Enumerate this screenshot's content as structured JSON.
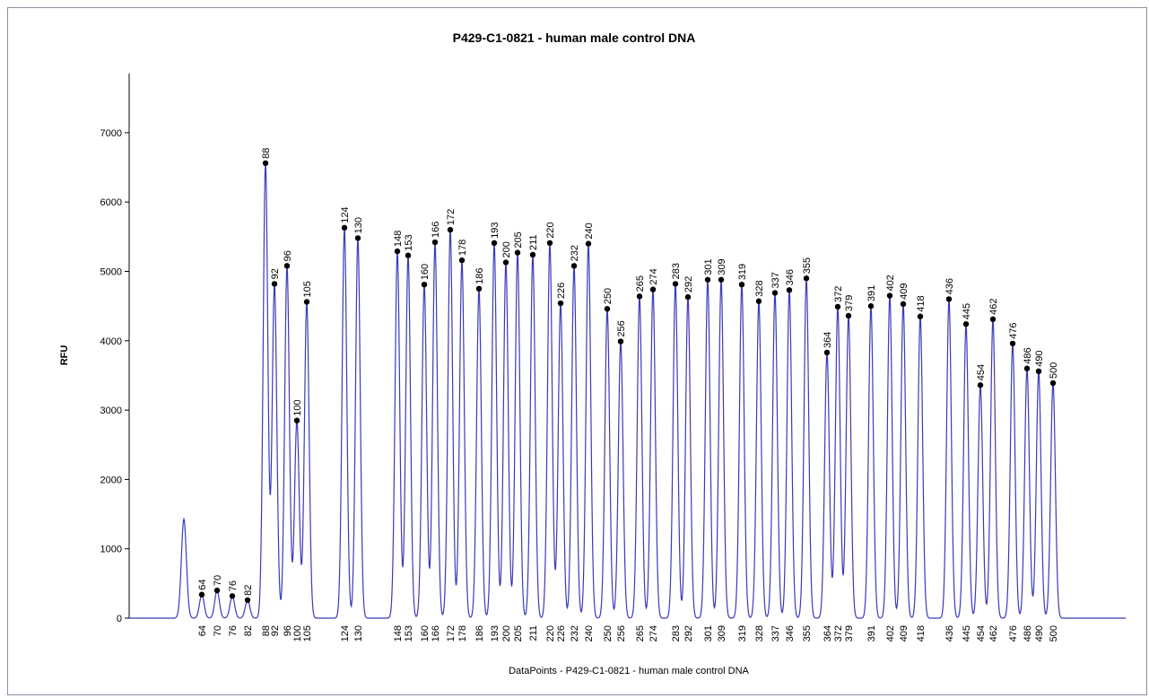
{
  "chart_data": {
    "type": "line",
    "title": "P429-C1-0821 - human male control DNA",
    "xlabel": "DataPoints - P429-C1-0821 - human male control DNA",
    "ylabel": "RFU",
    "ylim": [
      0,
      7800
    ],
    "y_ticks": [
      0,
      1000,
      2000,
      3000,
      4000,
      5000,
      6000,
      7000
    ],
    "grid": false,
    "line_color": "#3a3ab8",
    "marker_color": "#000000",
    "x_ticks": [
      "64",
      "70",
      "76",
      "82",
      "88",
      "92",
      "96",
      "100",
      "105",
      "124",
      "130",
      "148",
      "153",
      "160",
      "166",
      "172",
      "178",
      "186",
      "193",
      "200",
      "205",
      "211",
      "220",
      "226",
      "232",
      "240",
      "250",
      "256",
      "265",
      "274",
      "283",
      "292",
      "301",
      "309",
      "319",
      "328",
      "337",
      "346",
      "355",
      "364",
      "372",
      "379",
      "391",
      "402",
      "409",
      "418",
      "436",
      "445",
      "454",
      "462",
      "476",
      "486",
      "490",
      "500"
    ],
    "series": [
      {
        "peaks": [
          {
            "label": "64",
            "rfu": 340
          },
          {
            "label": "70",
            "rfu": 400
          },
          {
            "label": "76",
            "rfu": 320
          },
          {
            "label": "82",
            "rfu": 260
          },
          {
            "label": "88",
            "rfu": 6560
          },
          {
            "label": "92",
            "rfu": 4820
          },
          {
            "label": "96",
            "rfu": 5080
          },
          {
            "label": "100",
            "rfu": 2850
          },
          {
            "label": "105",
            "rfu": 4560
          },
          {
            "label": "124",
            "rfu": 5630
          },
          {
            "label": "130",
            "rfu": 5480
          },
          {
            "label": "148",
            "rfu": 5290
          },
          {
            "label": "153",
            "rfu": 5230
          },
          {
            "label": "160",
            "rfu": 4810
          },
          {
            "label": "166",
            "rfu": 5420
          },
          {
            "label": "172",
            "rfu": 5600
          },
          {
            "label": "178",
            "rfu": 5160
          },
          {
            "label": "186",
            "rfu": 4750
          },
          {
            "label": "193",
            "rfu": 5410
          },
          {
            "label": "200",
            "rfu": 5130
          },
          {
            "label": "205",
            "rfu": 5270
          },
          {
            "label": "211",
            "rfu": 5240
          },
          {
            "label": "220",
            "rfu": 5410
          },
          {
            "label": "226",
            "rfu": 4540
          },
          {
            "label": "232",
            "rfu": 5080
          },
          {
            "label": "240",
            "rfu": 5400
          },
          {
            "label": "250",
            "rfu": 4460
          },
          {
            "label": "256",
            "rfu": 3990
          },
          {
            "label": "265",
            "rfu": 4640
          },
          {
            "label": "274",
            "rfu": 4740
          },
          {
            "label": "283",
            "rfu": 4820
          },
          {
            "label": "292",
            "rfu": 4630
          },
          {
            "label": "301",
            "rfu": 4880
          },
          {
            "label": "309",
            "rfu": 4880
          },
          {
            "label": "319",
            "rfu": 4810
          },
          {
            "label": "328",
            "rfu": 4570
          },
          {
            "label": "337",
            "rfu": 4690
          },
          {
            "label": "346",
            "rfu": 4730
          },
          {
            "label": "355",
            "rfu": 4900
          },
          {
            "label": "364",
            "rfu": 3830
          },
          {
            "label": "372",
            "rfu": 4490
          },
          {
            "label": "379",
            "rfu": 4360
          },
          {
            "label": "391",
            "rfu": 4500
          },
          {
            "label": "402",
            "rfu": 4650
          },
          {
            "label": "409",
            "rfu": 4530
          },
          {
            "label": "418",
            "rfu": 4350
          },
          {
            "label": "436",
            "rfu": 4600
          },
          {
            "label": "445",
            "rfu": 4240
          },
          {
            "label": "454",
            "rfu": 3360
          },
          {
            "label": "462",
            "rfu": 4310
          },
          {
            "label": "476",
            "rfu": 3960
          },
          {
            "label": "486",
            "rfu": 3600
          },
          {
            "label": "490",
            "rfu": 3560
          },
          {
            "label": "500",
            "rfu": 3390
          }
        ],
        "unlabeled_peaks": [
          {
            "rfu": 1430
          }
        ]
      }
    ]
  }
}
